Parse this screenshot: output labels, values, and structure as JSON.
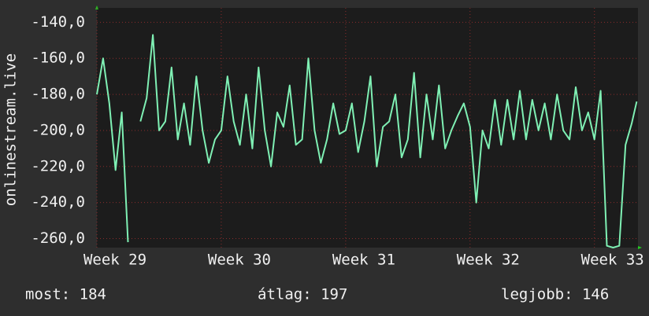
{
  "chart_data": {
    "type": "line",
    "y_label": "onlinestream.live",
    "x": [
      29.0,
      29.05,
      29.1,
      29.15,
      29.2,
      29.25,
      29.3,
      29.35,
      29.4,
      29.45,
      29.5,
      29.55,
      29.6,
      29.65,
      29.7,
      29.75,
      29.8,
      29.85,
      29.9,
      29.95,
      30.0,
      30.05,
      30.1,
      30.15,
      30.2,
      30.25,
      30.3,
      30.35,
      30.4,
      30.45,
      30.5,
      30.55,
      30.6,
      30.65,
      30.7,
      30.75,
      30.8,
      30.85,
      30.9,
      30.95,
      31.0,
      31.05,
      31.1,
      31.15,
      31.2,
      31.25,
      31.3,
      31.35,
      31.4,
      31.45,
      31.5,
      31.55,
      31.6,
      31.65,
      31.7,
      31.75,
      31.8,
      31.85,
      31.9,
      31.95,
      32.0,
      32.05,
      32.1,
      32.15,
      32.2,
      32.25,
      32.3,
      32.35,
      32.4,
      32.45,
      32.5,
      32.55,
      32.6,
      32.65,
      32.7,
      32.75,
      32.8,
      32.85,
      32.9,
      32.95,
      33.0,
      33.05,
      33.1,
      33.15,
      33.2,
      33.25,
      33.3,
      33.34
    ],
    "series": [
      {
        "name": "onlinestream.live",
        "color": "#7ff0b4",
        "values": [
          -180,
          -160,
          -185,
          -222,
          -190,
          -262,
          null,
          -195,
          -182,
          -147,
          -200,
          -195,
          -165,
          -205,
          -185,
          -208,
          -170,
          -200,
          -218,
          -205,
          -200,
          -170,
          -195,
          -208,
          -180,
          -210,
          -165,
          -200,
          -220,
          -190,
          -198,
          -175,
          -208,
          -205,
          -160,
          -200,
          -218,
          -205,
          -185,
          -202,
          -200,
          -185,
          -212,
          -195,
          -170,
          -220,
          -198,
          -195,
          -180,
          -215,
          -205,
          -168,
          -215,
          -180,
          -205,
          -175,
          -210,
          -200,
          -192,
          -185,
          -198,
          -240,
          -200,
          -210,
          -183,
          -208,
          -183,
          -205,
          -178,
          -205,
          -183,
          -200,
          -185,
          -205,
          -180,
          -200,
          -205,
          -176,
          -200,
          -190,
          -205,
          -178,
          -264,
          -265,
          -264,
          -208,
          -196,
          -184
        ]
      }
    ],
    "xlim": [
      29,
      33.35
    ],
    "ylim": [
      -265,
      -132
    ],
    "xticks": [
      {
        "value": 29,
        "label": "Week 29"
      },
      {
        "value": 30,
        "label": "Week 30"
      },
      {
        "value": 31,
        "label": "Week 31"
      },
      {
        "value": 32,
        "label": "Week 32"
      },
      {
        "value": 33,
        "label": "Week 33"
      }
    ],
    "yticks": [
      {
        "value": -140,
        "label": "-140,0"
      },
      {
        "value": -160,
        "label": "-160,0"
      },
      {
        "value": -180,
        "label": "-180,0"
      },
      {
        "value": -200,
        "label": "-200,0"
      },
      {
        "value": -220,
        "label": "-220,0"
      },
      {
        "value": -240,
        "label": "-240,0"
      },
      {
        "value": -260,
        "label": "-260,0"
      }
    ],
    "grid": true,
    "stats": [
      "most: 184",
      "átlag: 197",
      "legjobb: 146"
    ]
  }
}
